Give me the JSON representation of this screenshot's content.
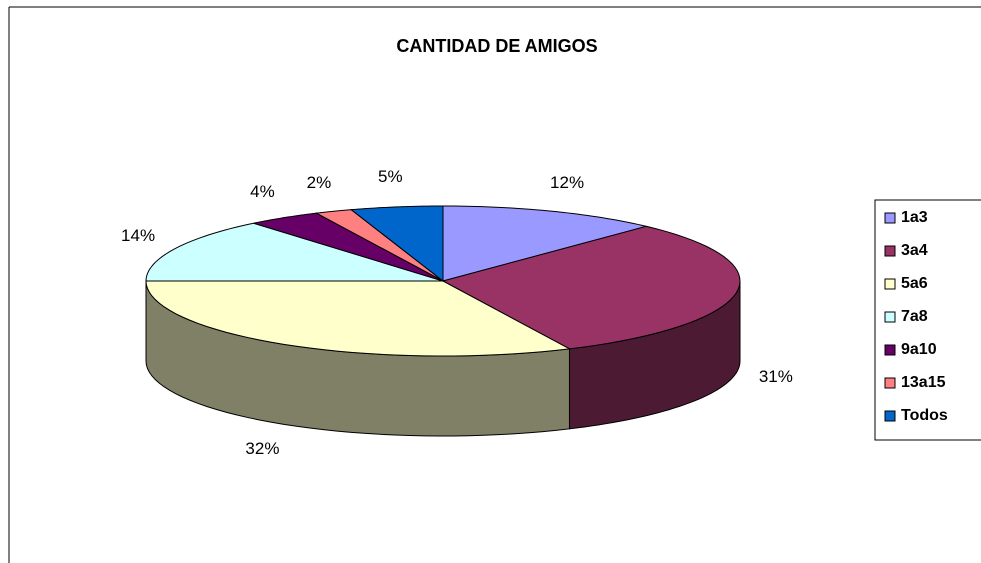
{
  "chart_data": {
    "type": "pie",
    "title": "CANTIDAD DE AMIGOS",
    "categories": [
      "1a3",
      "3a4",
      "5a6",
      "7a8",
      "9a10",
      "13a15",
      "Todos"
    ],
    "values": [
      12,
      31,
      32,
      14,
      4,
      2,
      5
    ],
    "value_labels": [
      "12%",
      "31%",
      "32%",
      "14%",
      "4%",
      "2%",
      "5%"
    ],
    "colors": [
      "#9999ff",
      "#993366",
      "#ffffcc",
      "#ccffff",
      "#660066",
      "#ff8080",
      "#0066cc"
    ],
    "legend": "right"
  }
}
